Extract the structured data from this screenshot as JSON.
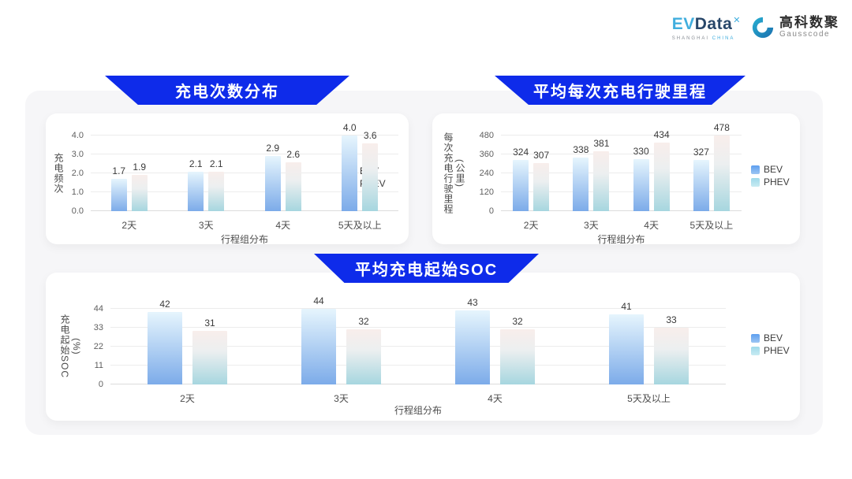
{
  "brand": {
    "evdata": {
      "ev": "EV",
      "data": "Data",
      "mark": "✕",
      "tagline_left": "SHANGHAI",
      "tagline_right": "CHINA"
    },
    "gausscode": {
      "cn": "高科数聚",
      "en": "Gausscode"
    }
  },
  "legend": {
    "bev": "BEV",
    "phev": "PHEV"
  },
  "colors": {
    "banner_blue": "#0e2bea",
    "bev_gradient_top": "#e6f5fd",
    "bev_gradient_bottom": "#7cabe9",
    "phev_gradient_top": "#f8eeeb",
    "phev_gradient_bottom": "#a6d6df",
    "legend_bev": "#5d9ff0",
    "legend_phev": "#9ed9ea",
    "panel_bg": "#f6f6f8",
    "card_bg": "#ffffff",
    "gridline": "#ececec"
  },
  "chart_data": [
    {
      "type": "bar",
      "title": "充电次数分布",
      "categories": [
        "2天",
        "3天",
        "4天",
        "5天及以上"
      ],
      "series": [
        {
          "name": "BEV",
          "values": [
            1.7,
            2.1,
            2.9,
            4.0
          ],
          "labels": [
            "1.7",
            "2.1",
            "2.9",
            "4.0"
          ]
        },
        {
          "name": "PHEV",
          "values": [
            1.9,
            2.1,
            2.6,
            3.6
          ],
          "labels": [
            "1.9",
            "2.1",
            "2.6",
            "3.6"
          ]
        }
      ],
      "xlabel": "行程组分布",
      "ylabel": "充电频次",
      "ylabel2": "",
      "ylim": [
        0,
        4
      ],
      "yticks": [
        "0.0",
        "1.0",
        "2.0",
        "3.0",
        "4.0"
      ],
      "grid": true,
      "legend_position": "right"
    },
    {
      "type": "bar",
      "title": "平均每次充电行驶里程",
      "categories": [
        "2天",
        "3天",
        "4天",
        "5天及以上"
      ],
      "series": [
        {
          "name": "BEV",
          "values": [
            324,
            338,
            330,
            327
          ],
          "labels": [
            "324",
            "338",
            "330",
            "327"
          ]
        },
        {
          "name": "PHEV",
          "values": [
            307,
            381,
            434,
            478
          ],
          "labels": [
            "307",
            "381",
            "434",
            "478"
          ]
        }
      ],
      "xlabel": "行程组分布",
      "ylabel": "每次充电行驶里程",
      "ylabel2": "(公里)",
      "ylim": [
        0,
        480
      ],
      "yticks": [
        "0",
        "120",
        "240",
        "360",
        "480"
      ],
      "grid": true,
      "legend_position": "right"
    },
    {
      "type": "bar",
      "title": "平均充电起始SOC",
      "categories": [
        "2天",
        "3天",
        "4天",
        "5天及以上"
      ],
      "series": [
        {
          "name": "BEV",
          "values": [
            42,
            44,
            43,
            41
          ],
          "labels": [
            "42",
            "44",
            "43",
            "41"
          ]
        },
        {
          "name": "PHEV",
          "values": [
            31,
            32,
            32,
            33
          ],
          "labels": [
            "31",
            "32",
            "32",
            "33"
          ]
        }
      ],
      "xlabel": "行程组分布",
      "ylabel": "充电起始SOC",
      "ylabel2": "(%)",
      "ylim": [
        0,
        44
      ],
      "yticks": [
        "0",
        "11",
        "22",
        "33",
        "44"
      ],
      "grid": true,
      "legend_position": "right"
    }
  ]
}
